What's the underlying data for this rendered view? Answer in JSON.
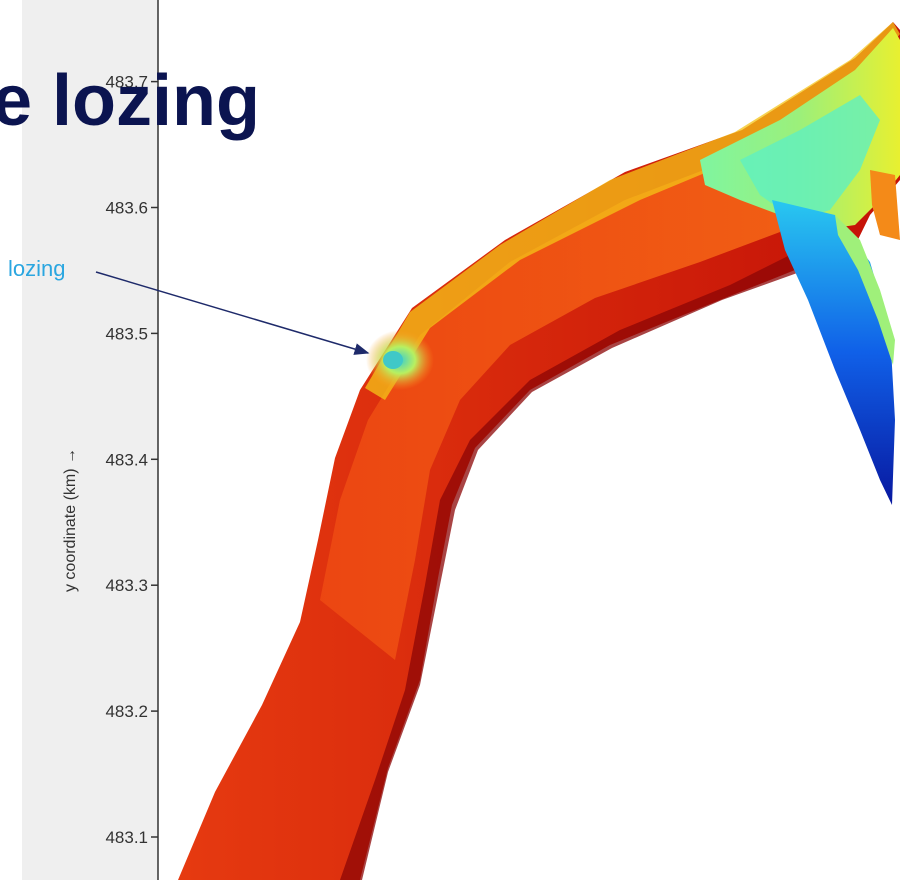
{
  "slide": {
    "title": "e lozing"
  },
  "chart_data": {
    "type": "heatmap",
    "title": "",
    "ylabel": "y coordinate (km) →",
    "y_ticks": [
      483.1,
      483.2,
      483.3,
      483.4,
      483.5,
      483.6,
      483.7
    ],
    "y_tick_labels": [
      "483.1",
      "483.2",
      "483.3",
      "483.4",
      "483.5",
      "483.6",
      "483.7"
    ],
    "colormap": "jet",
    "panel_color": "#efefef",
    "annotation": {
      "text": "lozing",
      "color": "#2aa6e0"
    }
  }
}
